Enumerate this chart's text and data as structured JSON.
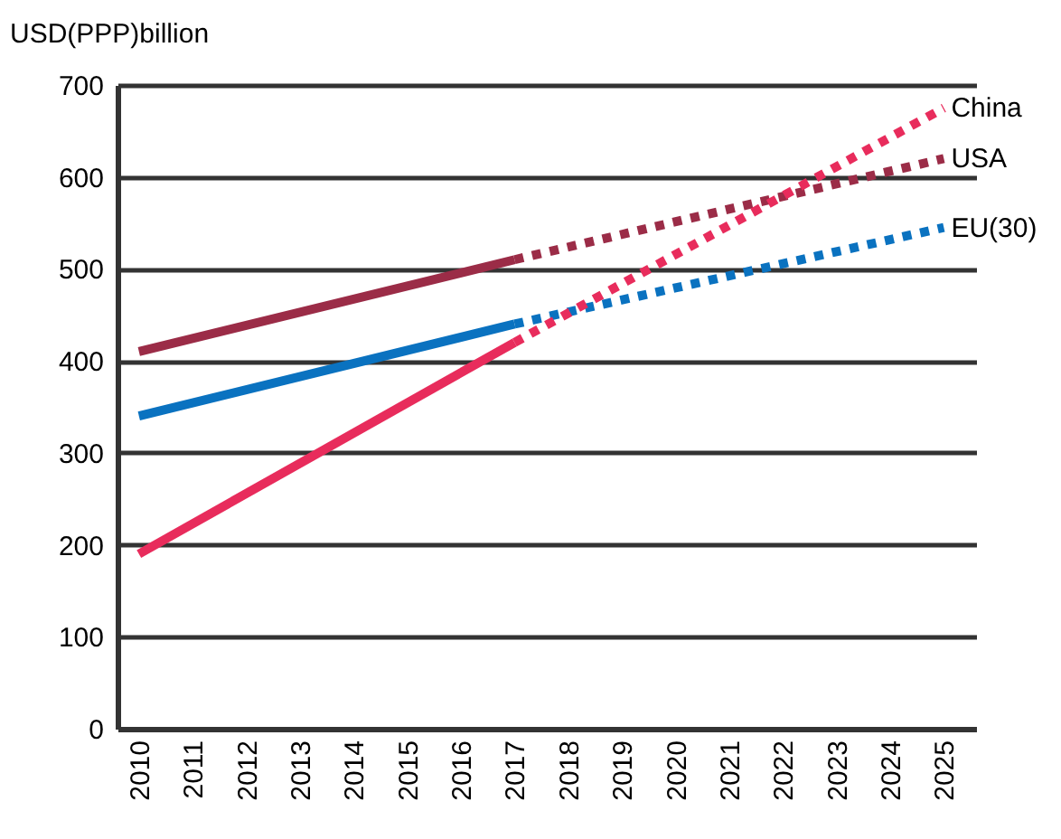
{
  "chart_data": {
    "type": "line",
    "ylabel": "USD(PPP)billion",
    "xlim": [
      2009.6,
      2025.6
    ],
    "xticks": [
      2010,
      2011,
      2012,
      2013,
      2014,
      2015,
      2016,
      2017,
      2018,
      2019,
      2020,
      2021,
      2022,
      2023,
      2024,
      2025
    ],
    "ylim": [
      0,
      700
    ],
    "yticks": [
      0,
      100,
      200,
      300,
      400,
      500,
      600,
      700
    ],
    "grid": "y",
    "legend": false,
    "marker": "none",
    "series": [
      {
        "color": "#9b2c47",
        "x": [
          2010,
          2017
        ],
        "values": [
          410,
          510
        ],
        "line_style": "solid"
      },
      {
        "color": "#0a72c0",
        "x": [
          2010,
          2017
        ],
        "values": [
          340,
          440
        ],
        "line_style": "solid"
      },
      {
        "color": "#e82c5c",
        "x": [
          2010,
          2017
        ],
        "values": [
          190,
          420
        ],
        "line_style": "solid"
      },
      {
        "name": "USA",
        "color": "#9b2c47",
        "x": [
          2017,
          2025
        ],
        "values": [
          510,
          620
        ],
        "line_style": "dotted"
      },
      {
        "name": "EU(30)",
        "color": "#0a72c0",
        "x": [
          2017,
          2025
        ],
        "values": [
          440,
          545
        ],
        "line_style": "dotted"
      },
      {
        "name": "China",
        "color": "#e82c5c",
        "x": [
          2017,
          2025
        ],
        "values": [
          420,
          675
        ],
        "line_style": "dotted"
      }
    ]
  }
}
